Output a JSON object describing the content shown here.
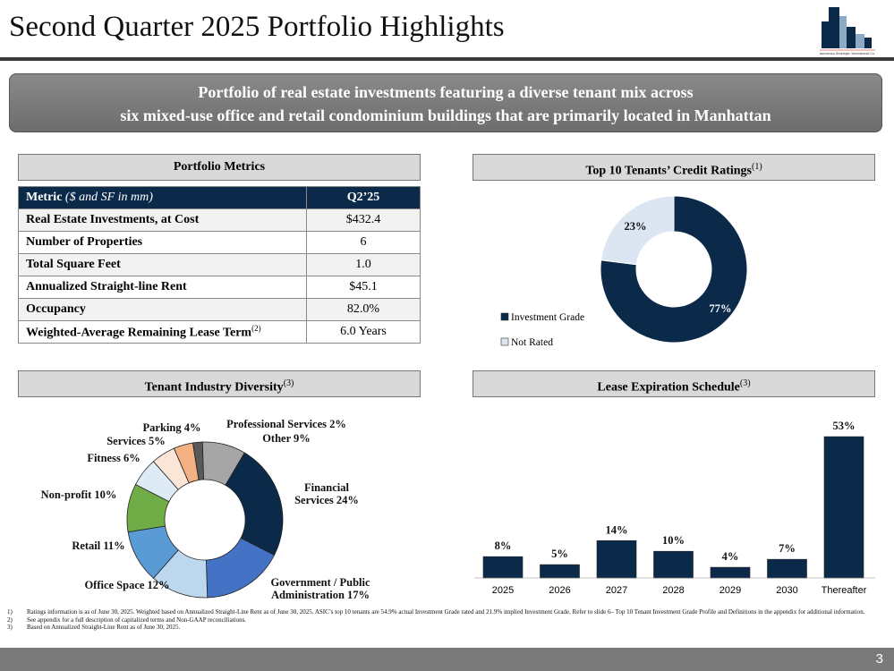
{
  "title": "Second Quarter 2025 Portfolio Highlights",
  "logo_text": "American Strategic Investment Co.",
  "banner": {
    "line1": "Portfolio of real estate investments featuring a diverse tenant mix across",
    "line2": "six mixed-use office and retail condominium buildings that are primarily located in Manhattan"
  },
  "sections": {
    "metrics": "Portfolio Metrics",
    "credit": "Top 10 Tenants’ Credit Ratings",
    "credit_note": "(1)",
    "industry": "Tenant Industry Diversity",
    "industry_note": "(3)",
    "lease": "Lease Expiration Schedule",
    "lease_note": "(3)"
  },
  "table": {
    "header": {
      "metric": "Metric",
      "metric_unit": "($ and SF in mm)",
      "period": "Q2’25"
    },
    "rows": [
      {
        "label": "Real Estate Investments, at Cost",
        "value": "$432.4"
      },
      {
        "label": "Number of Properties",
        "value": "6"
      },
      {
        "label": "Total Square Feet",
        "value": "1.0"
      },
      {
        "label": "Annualized Straight-line Rent",
        "value": "$45.1"
      },
      {
        "label": "Occupancy",
        "value": "82.0%"
      },
      {
        "label": "Weighted-Average Remaining Lease Term",
        "note": "(2)",
        "value": "6.0 Years"
      }
    ]
  },
  "chart_data": [
    {
      "type": "pie",
      "donut": true,
      "title": "Top 10 Tenants’ Credit Ratings",
      "legend": "left",
      "slices": [
        {
          "name": "Investment Grade",
          "value": 77,
          "label": "77%",
          "color": "#0b2a4a"
        },
        {
          "name": "Not Rated",
          "value": 23,
          "label": "23%",
          "color": "#dce6f2"
        }
      ]
    },
    {
      "type": "pie",
      "donut": true,
      "title": "Tenant Industry Diversity",
      "slices": [
        {
          "name": "Professional Services",
          "value": 2,
          "label": "Professional Services 2%",
          "color": "#595959"
        },
        {
          "name": "Other",
          "value": 9,
          "label": "Other 9%",
          "color": "#a6a6a6"
        },
        {
          "name": "Financial Services",
          "value": 24,
          "label": "Financial Services 24%",
          "color": "#0b2a4a"
        },
        {
          "name": "Government / Public Administration",
          "value": 17,
          "label": "Government / Public Administration 17%",
          "color": "#4472c4"
        },
        {
          "name": "Office Space",
          "value": 12,
          "label": "Office Space 12%",
          "color": "#bdd7ee"
        },
        {
          "name": "Retail",
          "value": 11,
          "label": "Retail 11%",
          "color": "#5b9bd5"
        },
        {
          "name": "Non-profit",
          "value": 10,
          "label": "Non-profit 10%",
          "color": "#70ad47"
        },
        {
          "name": "Fitness",
          "value": 6,
          "label": "Fitness 6%",
          "color": "#deebf7"
        },
        {
          "name": "Services",
          "value": 5,
          "label": "Services 5%",
          "color": "#fbe5d6"
        },
        {
          "name": "Parking",
          "value": 4,
          "label": "Parking 4%",
          "color": "#f4b183"
        }
      ]
    },
    {
      "type": "bar",
      "title": "Lease Expiration Schedule",
      "categories": [
        "2025",
        "2026",
        "2027",
        "2028",
        "2029",
        "2030",
        "Thereafter"
      ],
      "values": [
        8,
        5,
        14,
        10,
        4,
        7,
        53
      ],
      "data_labels": [
        "8%",
        "5%",
        "14%",
        "10%",
        "4%",
        "7%",
        "53%"
      ],
      "color": "#0b2a4a"
    }
  ],
  "footnotes": [
    {
      "n": "1)",
      "text": "Ratings information is as of June 30, 2025. Weighted based on Annualized Straight-Line Rent as of June 30, 2025. ASIC’s top 10 tenants are 54.9% actual Investment Grade rated and 21.9% implied Investment Grade. Refer to slide 6– Top 10 Tenant Investment Grade Profile and Definitions in the appendix for additional information."
    },
    {
      "n": "2)",
      "text": "See appendix for a full description of capitalized terms and Non-GAAP reconciliations."
    },
    {
      "n": "3)",
      "text": "Based on Annualized Straight-Line Rent as of June 30, 2025."
    }
  ],
  "page_number": "3"
}
